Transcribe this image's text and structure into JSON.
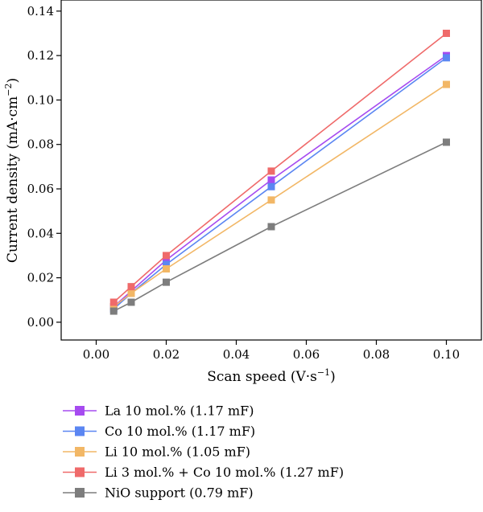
{
  "chart_data": {
    "type": "line",
    "xlabel": "Scan speed (V·s",
    "xlabel_sup": "−1",
    "xlabel_end": ")",
    "ylabel": "Current density (mA·cm",
    "ylabel_sup": "−2",
    "ylabel_end": ")",
    "xlim": [
      -0.01,
      0.11
    ],
    "ylim": [
      -0.008,
      0.145
    ],
    "xticks": [
      0.0,
      0.02,
      0.04,
      0.06,
      0.08,
      0.1
    ],
    "yticks": [
      0.0,
      0.02,
      0.04,
      0.06,
      0.08,
      0.1,
      0.12,
      0.14
    ],
    "xtick_labels": [
      "0.00",
      "0.02",
      "0.04",
      "0.06",
      "0.08",
      "0.10"
    ],
    "ytick_labels": [
      "0.00",
      "0.02",
      "0.04",
      "0.06",
      "0.08",
      "0.10",
      "0.12",
      "0.14"
    ],
    "x": [
      0.005,
      0.01,
      0.02,
      0.05,
      0.1
    ],
    "legend_position": "below",
    "series": [
      {
        "name": "La 10 mol.% (1.17 mF)",
        "color": "#a64bf0",
        "values": [
          0.007,
          0.014,
          0.028,
          0.064,
          0.12
        ]
      },
      {
        "name": "Co 10 mol.% (1.17 mF)",
        "color": "#5b86f2",
        "values": [
          0.006,
          0.013,
          0.026,
          0.061,
          0.119
        ]
      },
      {
        "name": "Li 10 mol.% (1.05 mF)",
        "color": "#f2b766",
        "values": [
          0.007,
          0.013,
          0.024,
          0.055,
          0.107
        ]
      },
      {
        "name": "Li 3 mol.% + Co 10 mol.% (1.27 mF)",
        "color": "#ef6a6a",
        "values": [
          0.009,
          0.016,
          0.03,
          0.068,
          0.13
        ]
      },
      {
        "name": "NiO support (0.79 mF)",
        "color": "#7d7d7d",
        "values": [
          0.005,
          0.009,
          0.018,
          0.043,
          0.081
        ]
      }
    ]
  }
}
